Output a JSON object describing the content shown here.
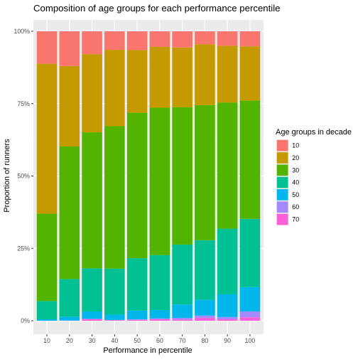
{
  "chart_data": {
    "type": "bar",
    "stacked": true,
    "title": "Composition of age groups for each performance percentile",
    "xlabel": "Performance in percentile",
    "ylabel": "Proportion of runners",
    "categories": [
      "10",
      "20",
      "30",
      "40",
      "50",
      "60",
      "70",
      "80",
      "90",
      "100"
    ],
    "ylim": [
      0,
      1
    ],
    "y_ticks": [
      {
        "value": 0,
        "label": "0%"
      },
      {
        "value": 0.25,
        "label": "25%"
      },
      {
        "value": 0.5,
        "label": "50%"
      },
      {
        "value": 0.75,
        "label": "75%"
      },
      {
        "value": 1,
        "label": "100%"
      }
    ],
    "legend": {
      "title": "Age groups in decade",
      "position": "right"
    },
    "series": [
      {
        "name": "10",
        "color": "#F8766D",
        "values": [
          0.112,
          0.12,
          0.079,
          0.064,
          0.065,
          0.054,
          0.056,
          0.045,
          0.05,
          0.052
        ]
      },
      {
        "name": "20",
        "color": "#C49A00",
        "values": [
          0.518,
          0.278,
          0.27,
          0.264,
          0.216,
          0.21,
          0.206,
          0.21,
          0.196,
          0.187
        ]
      },
      {
        "name": "30",
        "color": "#53B400",
        "values": [
          0.302,
          0.458,
          0.47,
          0.492,
          0.503,
          0.509,
          0.475,
          0.467,
          0.436,
          0.409
        ]
      },
      {
        "name": "40",
        "color": "#00C094",
        "values": [
          0.063,
          0.13,
          0.149,
          0.159,
          0.181,
          0.19,
          0.207,
          0.206,
          0.227,
          0.236
        ]
      },
      {
        "name": "50",
        "color": "#00B6EB",
        "values": [
          0.005,
          0.013,
          0.025,
          0.018,
          0.03,
          0.029,
          0.046,
          0.054,
          0.078,
          0.084
        ]
      },
      {
        "name": "60",
        "color": "#A58AFF",
        "values": [
          0.0,
          0.001,
          0.002,
          0.001,
          0.002,
          0.003,
          0.006,
          0.008,
          0.008,
          0.02
        ]
      },
      {
        "name": "70",
        "color": "#FB61D7",
        "values": [
          0.0,
          0.0,
          0.005,
          0.002,
          0.003,
          0.005,
          0.004,
          0.01,
          0.005,
          0.012
        ]
      }
    ],
    "colors": {
      "panel_background": "#EBEBEB",
      "grid_major": "#FFFFFF",
      "grid_minor": "#F5F5F5",
      "axis_text": "#4D4D4D",
      "text": "#000000"
    }
  }
}
